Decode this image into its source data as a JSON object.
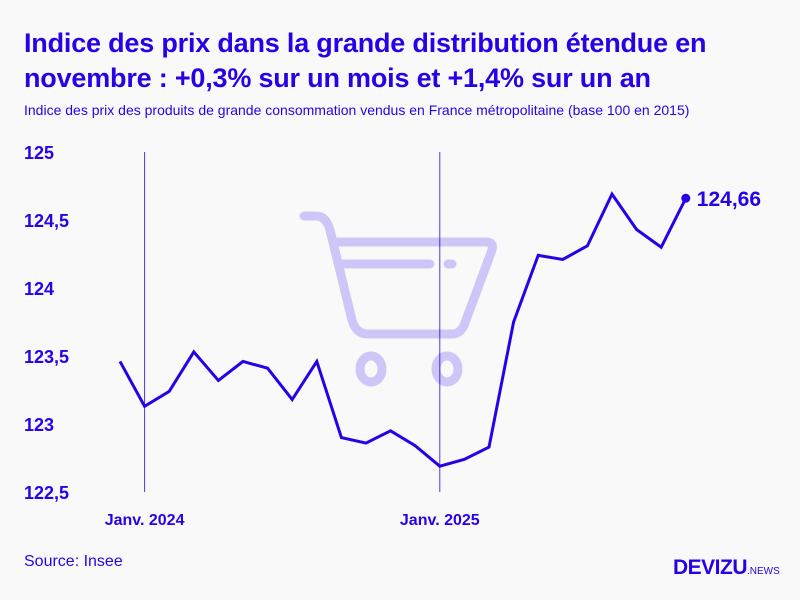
{
  "title": "Indice des prix dans la grande distribution étendue en novembre : +0,3% sur un mois et +1,4% sur un an",
  "subtitle": "Indice des prix des produits de grande consommation vendus en France métropolitaine (base 100 en 2015)",
  "source": "Source: Insee",
  "logo": {
    "main": "DEVIZU",
    "suffix": ".NEWS"
  },
  "colors": {
    "accent": "#2a00e6",
    "background": "#f9f9f9",
    "cart": "#cdc6f7"
  },
  "decoration_icon": "shopping-cart-icon",
  "chart_data": {
    "type": "line",
    "title": "",
    "xlabel": "",
    "ylabel": "",
    "ylim": [
      122.5,
      125
    ],
    "yticks": [
      122.5,
      123,
      123.5,
      124,
      124.5,
      125
    ],
    "ytick_labels": [
      "122,5",
      "123",
      "123,5",
      "124",
      "124,5",
      "125"
    ],
    "x": [
      "2023-12",
      "2024-01",
      "2024-02",
      "2024-03",
      "2024-04",
      "2024-05",
      "2024-06",
      "2024-07",
      "2024-08",
      "2024-09",
      "2024-10",
      "2024-11",
      "2024-12",
      "2025-01",
      "2025-02",
      "2025-03",
      "2025-04",
      "2025-05",
      "2025-06",
      "2025-07",
      "2025-08",
      "2025-09",
      "2025-10",
      "2025-11"
    ],
    "values": [
      123.46,
      123.13,
      123.24,
      123.53,
      123.32,
      123.46,
      123.41,
      123.18,
      123.46,
      122.9,
      122.86,
      122.95,
      122.84,
      122.69,
      122.74,
      122.83,
      123.75,
      124.24,
      124.21,
      124.31,
      124.69,
      124.43,
      124.3,
      124.66
    ],
    "xtick_labels": [
      {
        "x": "2024-01",
        "label": "Janv. 2024"
      },
      {
        "x": "2025-01",
        "label": "Janv. 2025"
      }
    ],
    "last_value_label": "124,66",
    "grid": false,
    "legend": "none"
  }
}
